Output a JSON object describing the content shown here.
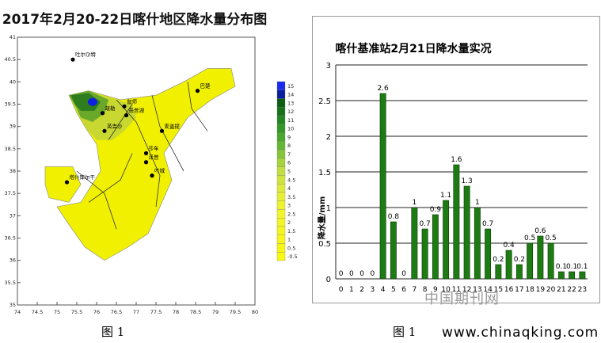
{
  "left_chart": {
    "title": "2017年2月20-22日喀什地区降水量分布图",
    "xlim": [
      74,
      80
    ],
    "ylim": [
      35,
      41
    ],
    "x_ticks": [
      "74",
      "74.5",
      "75",
      "75.5",
      "76",
      "76.5",
      "77",
      "77.5",
      "78",
      "78.5",
      "79",
      "79.5",
      "80"
    ],
    "y_ticks": [
      "35",
      "35.5",
      "36",
      "36.5",
      "37",
      "37.5",
      "38",
      "38.5",
      "39",
      "39.5",
      "40",
      "40.5",
      "41"
    ],
    "stations": [
      {
        "label": "吐尔尕特",
        "lon": 75.4,
        "lat": 40.5
      },
      {
        "label": "巴楚",
        "lon": 78.55,
        "lat": 39.8
      },
      {
        "label": "伽师",
        "lon": 76.7,
        "lat": 39.45
      },
      {
        "label": "岳普湖",
        "lon": 76.75,
        "lat": 39.25
      },
      {
        "label": "麦盖提",
        "lon": 77.65,
        "lat": 38.9
      },
      {
        "label": "疏勒",
        "lon": 76.15,
        "lat": 39.3
      },
      {
        "label": "英吉沙",
        "lon": 76.2,
        "lat": 38.9
      },
      {
        "label": "莎车",
        "lon": 77.25,
        "lat": 38.4
      },
      {
        "label": "泽普",
        "lon": 77.25,
        "lat": 38.2
      },
      {
        "label": "叶城",
        "lon": 77.4,
        "lat": 37.9
      },
      {
        "label": "塔什库尔干",
        "lon": 75.25,
        "lat": 37.75
      }
    ],
    "legend_labels": [
      "15",
      "14",
      "13",
      "12",
      "11",
      "10",
      "9",
      "8",
      "7",
      "6",
      "5",
      "4.5",
      "4",
      "3.5",
      "3",
      "2.5",
      "2",
      "1.5",
      "1",
      "0.5",
      "-0.5"
    ],
    "colors": {
      "ocean": "#f5f5a0",
      "land": "#f0f000",
      "wet1": "#c8d830",
      "wet2": "#6aa82a",
      "wet3": "#2e7d1e",
      "peak": "#1020e0"
    }
  },
  "chart_data": {
    "type": "bar",
    "title": "喀什基准站2月21日降水量实况",
    "ylabel": "降水量/mm",
    "xlabel": "",
    "ylim": [
      0,
      3
    ],
    "y_ticks": [
      "0",
      "0.5",
      "1",
      "1.5",
      "2",
      "2.5",
      "3"
    ],
    "categories": [
      "0",
      "1",
      "2",
      "3",
      "4",
      "5",
      "6",
      "7",
      "8",
      "9",
      "10",
      "11",
      "12",
      "13",
      "14",
      "15",
      "16",
      "17",
      "18",
      "19",
      "20",
      "21",
      "22",
      "23"
    ],
    "values": [
      0,
      0,
      0,
      0,
      2.6,
      0.8,
      0,
      1,
      0.7,
      0.9,
      1.1,
      1.6,
      1.3,
      1,
      0.7,
      0.2,
      0.4,
      0.2,
      0.5,
      0.6,
      0.5,
      0.1,
      0.1,
      0.1
    ],
    "data_labels": [
      "0",
      "0",
      "0",
      "0",
      "2.6",
      "0.8",
      "0",
      "1",
      "0.7",
      "0.9",
      "1.1",
      "1.6",
      "1.3",
      "1",
      "0.7",
      "0.2",
      "0.4",
      "0.2",
      "0.5",
      "0.6",
      "0.5",
      "0.1",
      "0.1",
      "0.1"
    ],
    "bar_color": "#1e7a12",
    "grid": true
  },
  "captions": {
    "fig_left": "图 1",
    "fig_right": "图 1"
  },
  "watermark": {
    "cn": "中国期刊网",
    "url": "www.chinaqking.com"
  }
}
